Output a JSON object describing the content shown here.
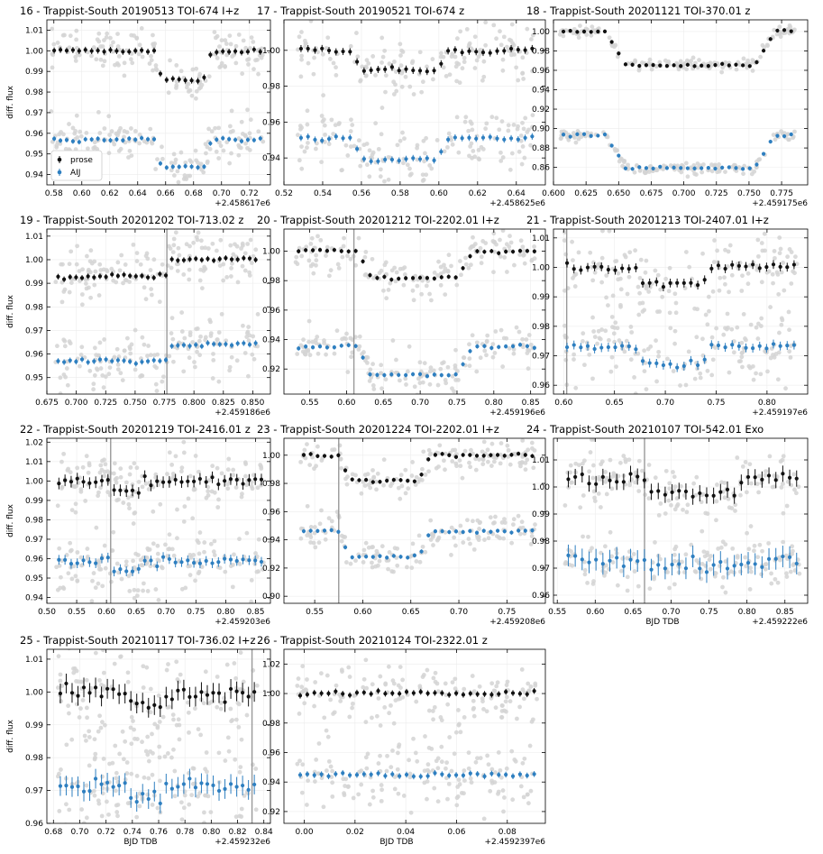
{
  "colors": {
    "prose": "#111111",
    "aij": "#2e7fc0",
    "raw": "#d3d3d3",
    "grid": "#ececec",
    "vline": "#999999"
  },
  "legend": {
    "series": [
      "prose",
      "AIJ"
    ],
    "placement": "lower-left of panel 16"
  },
  "chart_data": [
    {
      "type": "scatter",
      "title": "16 - Trappist-South 20190513 TOI-674 I+z",
      "ylabel": "diff. flux",
      "xlabel": "",
      "offset_label": "+2.458617e6",
      "xlim": [
        0.575,
        0.735
      ],
      "ylim": [
        0.935,
        1.015
      ],
      "xticks": [
        0.58,
        0.6,
        0.62,
        0.64,
        0.66,
        0.68,
        0.7,
        0.72
      ],
      "xdec": 2,
      "yticks": [
        0.94,
        0.95,
        0.96,
        0.97,
        0.98,
        0.99,
        1.0,
        1.01
      ],
      "ydec": 2,
      "transit": [
        0.652,
        0.693
      ],
      "vline": null,
      "data_range": [
        0.578,
        0.73
      ],
      "series": [
        {
          "name": "prose",
          "base": 1.0,
          "depth": 0.014,
          "err": 0.0015
        },
        {
          "name": "AIJ",
          "base": 0.957,
          "depth": 0.013,
          "err": 0.0012
        }
      ],
      "raw_scatter": 0.003
    },
    {
      "type": "scatter",
      "title": "17 - Trappist-South 20190521 TOI-674 z",
      "ylabel": "",
      "xlabel": "",
      "offset_label": "+2.458625e6",
      "xlim": [
        0.52,
        0.655
      ],
      "ylim": [
        0.925,
        1.017
      ],
      "xticks": [
        0.52,
        0.54,
        0.56,
        0.58,
        0.6,
        0.62,
        0.64
      ],
      "xdec": 2,
      "yticks": [
        0.94,
        0.96,
        0.98,
        1.0
      ],
      "ydec": 2,
      "transit": [
        0.555,
        0.605
      ],
      "vline": null,
      "data_range": [
        0.527,
        0.65
      ],
      "series": [
        {
          "name": "prose",
          "base": 1.0,
          "depth": 0.011,
          "err": 0.002
        },
        {
          "name": "AIJ",
          "base": 0.951,
          "depth": 0.012,
          "err": 0.0018
        }
      ],
      "raw_scatter": 0.006
    },
    {
      "type": "scatter",
      "title": "18 - Trappist-South 20201121 TOI-370.01 z",
      "ylabel": "",
      "xlabel": "",
      "offset_label": "+2.459175e6",
      "xlim": [
        0.6,
        0.795
      ],
      "ylim": [
        0.842,
        1.012
      ],
      "xticks": [
        0.6,
        0.625,
        0.65,
        0.675,
        0.7,
        0.725,
        0.75,
        0.775
      ],
      "xdec": 3,
      "yticks": [
        0.86,
        0.88,
        0.9,
        0.92,
        0.94,
        0.96,
        0.98,
        1.0
      ],
      "ydec": 2,
      "transit": [
        0.64,
        0.77
      ],
      "vline": null,
      "data_range": [
        0.605,
        0.785
      ],
      "series": [
        {
          "name": "prose",
          "base": 1.0,
          "depth": 0.035,
          "err": 0.002
        },
        {
          "name": "AIJ",
          "base": 0.893,
          "depth": 0.034,
          "err": 0.002
        }
      ],
      "raw_scatter": 0.001
    },
    {
      "type": "scatter",
      "title": "19 - Trappist-South 20201202 TOI-713.02 z",
      "ylabel": "diff. flux",
      "xlabel": "",
      "offset_label": "+2.459186e6",
      "xlim": [
        0.675,
        0.865
      ],
      "ylim": [
        0.943,
        1.013
      ],
      "xticks": [
        0.675,
        0.7,
        0.725,
        0.75,
        0.775,
        0.8,
        0.825,
        0.85
      ],
      "xdec": 3,
      "yticks": [
        0.95,
        0.96,
        0.97,
        0.98,
        0.99,
        1.0,
        1.01
      ],
      "ydec": 2,
      "transit": null,
      "vline": 0.777,
      "data_range": [
        0.682,
        0.855
      ],
      "step": {
        "at": 0.777,
        "prose": [
          0.993,
          1.0
        ],
        "AIJ": [
          0.957,
          0.964
        ]
      },
      "series": [
        {
          "name": "prose",
          "base": 1.0,
          "depth": 0,
          "err": 0.0012
        },
        {
          "name": "AIJ",
          "base": 0.964,
          "depth": 0,
          "err": 0.0012
        }
      ],
      "raw_scatter": 0.004
    },
    {
      "type": "scatter",
      "title": "20 - Trappist-South 20201212 TOI-2202.01 I+z",
      "ylabel": "",
      "xlabel": "",
      "offset_label": "+2.459196e6",
      "xlim": [
        0.515,
        0.87
      ],
      "ylim": [
        0.903,
        1.015
      ],
      "xticks": [
        0.55,
        0.6,
        0.65,
        0.7,
        0.75,
        0.8,
        0.85
      ],
      "xdec": 2,
      "yticks": [
        0.92,
        0.94,
        0.96,
        0.98,
        1.0
      ],
      "ydec": 2,
      "transit": [
        0.615,
        0.77
      ],
      "vline": 0.61,
      "data_range": [
        0.53,
        0.86
      ],
      "series": [
        {
          "name": "prose",
          "base": 1.0,
          "depth": 0.018,
          "err": 0.0015
        },
        {
          "name": "AIJ",
          "base": 0.935,
          "depth": 0.019,
          "err": 0.0015
        }
      ],
      "raw_scatter": 0.005
    },
    {
      "type": "scatter",
      "title": "21 - Trappist-South 20201213 TOI-2407.01 I+z",
      "ylabel": "",
      "xlabel": "",
      "offset_label": "+2.459197e6",
      "xlim": [
        0.59,
        0.84
      ],
      "ylim": [
        0.957,
        1.013
      ],
      "xticks": [
        0.6,
        0.65,
        0.7,
        0.75,
        0.8
      ],
      "xdec": 2,
      "yticks": [
        0.96,
        0.97,
        0.98,
        0.99,
        1.0,
        1.01
      ],
      "ydec": 2,
      "transit": [
        0.67,
        0.745
      ],
      "vline": 0.603,
      "data_range": [
        0.6,
        0.83
      ],
      "series": [
        {
          "name": "prose",
          "base": 1.0,
          "depth": 0.006,
          "err": 0.0015
        },
        {
          "name": "AIJ",
          "base": 0.973,
          "depth": 0.006,
          "err": 0.0015
        }
      ],
      "raw_scatter": 0.004
    },
    {
      "type": "scatter",
      "title": "22 - Trappist-South 20201219 TOI-2416.01 z",
      "ylabel": "diff. flux",
      "xlabel": "",
      "offset_label": "+2.459203e6",
      "xlim": [
        0.5,
        0.875
      ],
      "ylim": [
        0.937,
        1.022
      ],
      "xticks": [
        0.5,
        0.55,
        0.6,
        0.65,
        0.7,
        0.75,
        0.8,
        0.85
      ],
      "xdec": 2,
      "yticks": [
        0.94,
        0.95,
        0.96,
        0.97,
        0.98,
        0.99,
        1.0,
        1.01,
        1.02
      ],
      "ydec": 2,
      "transit": [
        0.605,
        0.665
      ],
      "vline": 0.607,
      "data_range": [
        0.515,
        0.865
      ],
      "series": [
        {
          "name": "prose",
          "base": 1.0,
          "depth": 0.005,
          "err": 0.003
        },
        {
          "name": "AIJ",
          "base": 0.959,
          "depth": 0.005,
          "err": 0.0025
        }
      ],
      "raw_scatter": 0.006
    },
    {
      "type": "scatter",
      "title": "23 - Trappist-South 20201224 TOI-2202.01 I+z",
      "ylabel": "",
      "xlabel": "",
      "offset_label": "+2.459208e6",
      "xlim": [
        0.518,
        0.79
      ],
      "ylim": [
        0.895,
        1.012
      ],
      "xticks": [
        0.55,
        0.6,
        0.65,
        0.7,
        0.75
      ],
      "xdec": 2,
      "yticks": [
        0.9,
        0.92,
        0.94,
        0.96,
        0.98,
        1.0
      ],
      "ydec": 2,
      "transit": [
        0.575,
        0.67
      ],
      "vline": 0.575,
      "data_range": [
        0.535,
        0.78
      ],
      "series": [
        {
          "name": "prose",
          "base": 1.0,
          "depth": 0.018,
          "err": 0.0015
        },
        {
          "name": "AIJ",
          "base": 0.946,
          "depth": 0.018,
          "err": 0.0015
        }
      ],
      "raw_scatter": 0.004
    },
    {
      "type": "scatter",
      "title": "24 - Trappist-South 20210107 TOI-542.01 Exo",
      "ylabel": "",
      "xlabel": "BJD TDB",
      "offset_label": "+2.459222e6",
      "xlim": [
        0.545,
        0.88
      ],
      "ylim": [
        0.957,
        1.018
      ],
      "xticks": [
        0.55,
        0.6,
        0.65,
        0.7,
        0.75,
        0.8,
        0.85
      ],
      "xdec": 2,
      "yticks": [
        0.96,
        0.97,
        0.98,
        0.99,
        1.0,
        1.01
      ],
      "ydec": 2,
      "transit": [
        0.66,
        0.8
      ],
      "vline": 0.665,
      "data_range": [
        0.56,
        0.87
      ],
      "series": [
        {
          "name": "prose",
          "base": 1.003,
          "depth": 0.006,
          "err": 0.003
        },
        {
          "name": "AIJ",
          "base": 0.973,
          "depth": 0.002,
          "err": 0.004
        }
      ],
      "raw_scatter": 0.0
    },
    {
      "type": "scatter",
      "title": "25 - Trappist-South 20210117 TOI-736.02 I+z",
      "ylabel": "diff. flux",
      "xlabel": "BJD TDB",
      "offset_label": "+2.459232e6",
      "xlim": [
        0.675,
        0.845
      ],
      "ylim": [
        0.96,
        1.013
      ],
      "xticks": [
        0.68,
        0.7,
        0.72,
        0.74,
        0.76,
        0.78,
        0.8,
        0.82,
        0.84
      ],
      "xdec": 2,
      "yticks": [
        0.96,
        0.97,
        0.98,
        0.99,
        1.0,
        1.01
      ],
      "ydec": 2,
      "transit": [
        0.735,
        0.765
      ],
      "vline": 0.831,
      "data_range": [
        0.683,
        0.835
      ],
      "series": [
        {
          "name": "prose",
          "base": 1.0,
          "depth": 0.004,
          "err": 0.003
        },
        {
          "name": "AIJ",
          "base": 0.971,
          "depth": 0.003,
          "err": 0.003
        }
      ],
      "raw_scatter": 0.008
    },
    {
      "type": "scatter",
      "title": "26 - Trappist-South 20210124 TOI-2322.01 z",
      "ylabel": "",
      "xlabel": "BJD TDB",
      "offset_label": "+2.4592397e6",
      "xlim": [
        -0.008,
        0.095
      ],
      "ylim": [
        0.912,
        1.03
      ],
      "xticks": [
        0.0,
        0.02,
        0.04,
        0.06,
        0.08
      ],
      "xdec": 2,
      "yticks": [
        0.92,
        0.94,
        0.96,
        0.98,
        1.0,
        1.02
      ],
      "ydec": 2,
      "transit": null,
      "vline": null,
      "data_range": [
        -0.003,
        0.092
      ],
      "series": [
        {
          "name": "prose",
          "base": 1.0,
          "depth": 0,
          "err": 0.002
        },
        {
          "name": "AIJ",
          "base": 0.945,
          "depth": 0,
          "err": 0.002
        }
      ],
      "raw_scatter": 0.009
    }
  ]
}
